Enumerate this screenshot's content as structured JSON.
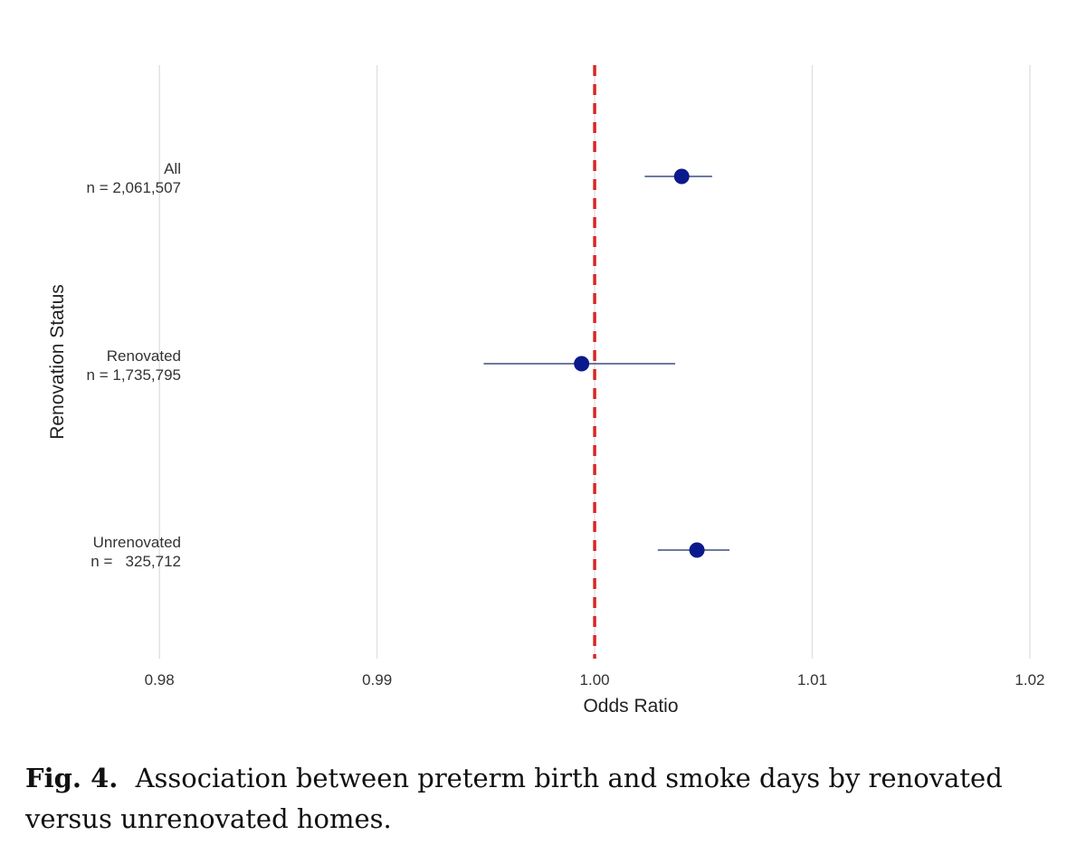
{
  "chart_data": {
    "type": "forest",
    "title": "",
    "xlabel": "Odds Ratio",
    "ylabel": "Renovation Status",
    "xlim": [
      0.976,
      1.0205
    ],
    "xticks": [
      0.98,
      0.99,
      1.0,
      1.01,
      1.02
    ],
    "xtick_labels": [
      "0.98",
      "0.99",
      "1.00",
      "1.01",
      "1.02"
    ],
    "reference_line": {
      "x": 1.0,
      "style": "dashed",
      "color": "#d62728"
    },
    "grid": "vertical",
    "point_color": "#0a1a8c",
    "interval_color": "#3d4d80",
    "rows": [
      {
        "name": "All",
        "n_label": "n = 2,061,507",
        "estimate": 1.004,
        "lower": 1.0023,
        "upper": 1.0054
      },
      {
        "name": "Renovated",
        "n_label": "n = 1,735,795",
        "estimate": 0.9994,
        "lower": 0.9949,
        "upper": 1.0037
      },
      {
        "name": "Unrenovated",
        "n_label": "n =   325,712",
        "estimate": 1.0047,
        "lower": 1.0029,
        "upper": 1.0062
      }
    ]
  },
  "caption": {
    "label": "Fig. 4.",
    "text": "Association between preterm birth and smoke days by renovated versus unrenovated homes."
  }
}
